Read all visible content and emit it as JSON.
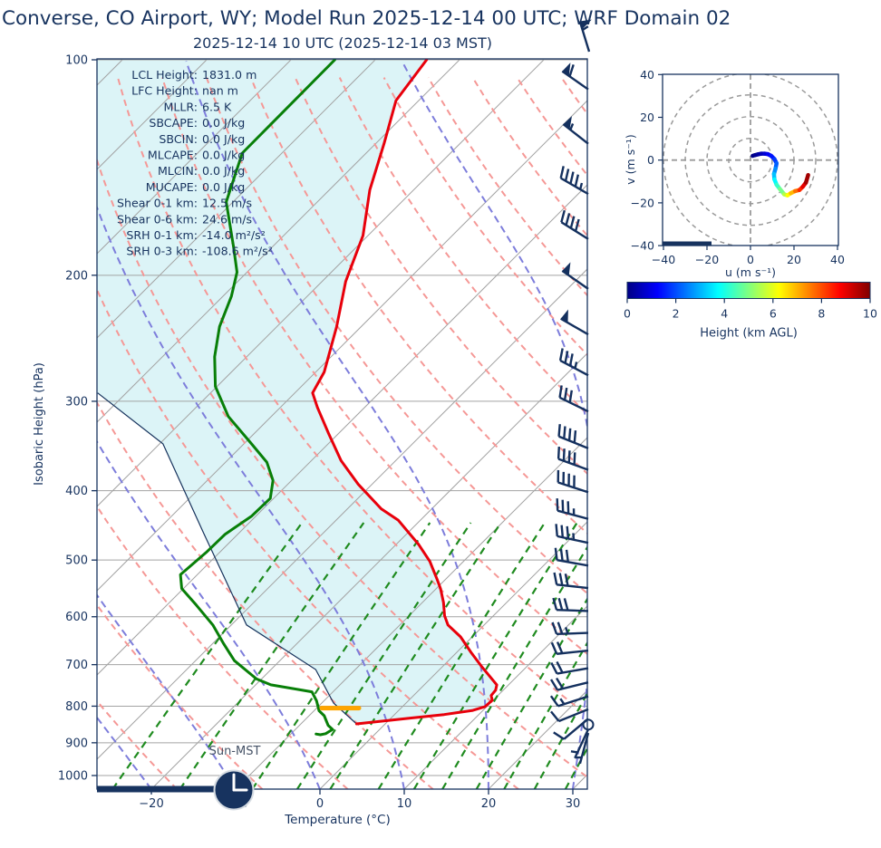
{
  "figure": {
    "title": "Converse, CO Airport, WY; Model Run 2025-12-14 00 UTC; WRF Domain 02",
    "subtitle": "2025-12-14 10 UTC  (2025-12-14 03 MST)",
    "text_color": "#17335f",
    "background": "#ffffff"
  },
  "skewt": {
    "xlabel": "Temperature (°C)",
    "ylabel": "Isobaric Height (hPa)",
    "pressure_ticks": [
      "100",
      "200",
      "300",
      "400",
      "500",
      "600",
      "700",
      "800",
      "900",
      "1000"
    ],
    "temperature_ticks": [
      "−20",
      "−10",
      "0",
      "10",
      "20",
      "30"
    ],
    "sun_label": "Sun-MST",
    "clock_time_shown": "3:00",
    "stats": [
      {
        "label": "LCL Height:",
        "value": "1831.0 m"
      },
      {
        "label": "LFC Height:",
        "value": "nan m"
      },
      {
        "label": "MLLR:",
        "value": "6.5 K"
      },
      {
        "label": "SBCAPE:",
        "value": "0.0 J/kg"
      },
      {
        "label": "SBCIN:",
        "value": "0.0 J/kg"
      },
      {
        "label": "MLCAPE:",
        "value": "0.0 J/kg"
      },
      {
        "label": "MLCIN:",
        "value": "0.0 J/kg"
      },
      {
        "label": "MUCAPE:",
        "value": "0.0 J/kg"
      },
      {
        "label": "Shear 0-1 km:",
        "value": "12.5 m/s"
      },
      {
        "label": "Shear 0-6 km:",
        "value": "24.6 m/s"
      },
      {
        "label": "SRH 0-1 km:",
        "value": "-14.0 m²/s²"
      },
      {
        "label": "SRH 0-3 km:",
        "value": "-108.6 m²/s²"
      }
    ],
    "colors": {
      "temperature": "#e8000b",
      "dewpoint": "#087f08",
      "parcel": "#16325c",
      "isotherm": "#a3a3a3",
      "dry_adiabat": "#f59896",
      "moist_adiabat": "#7d7ddb",
      "mixing_ratio": "#1f8b1f",
      "shade": "#dcf4f7",
      "lcl_marker": "#ffa500",
      "barb": "#14305e"
    },
    "wind_barbs_approx": [
      {
        "p": 110,
        "kt": 60,
        "dir": 305
      },
      {
        "p": 131,
        "kt": 55,
        "dir": 308
      },
      {
        "p": 154,
        "kt": 45,
        "dir": 300
      },
      {
        "p": 178,
        "kt": 40,
        "dir": 302
      },
      {
        "p": 209,
        "kt": 50,
        "dir": 305
      },
      {
        "p": 242,
        "kt": 50,
        "dir": 300
      },
      {
        "p": 276,
        "kt": 35,
        "dir": 298
      },
      {
        "p": 310,
        "kt": 30,
        "dir": 296
      },
      {
        "p": 349,
        "kt": 40,
        "dir": 292
      },
      {
        "p": 374,
        "kt": 40,
        "dir": 290
      },
      {
        "p": 402,
        "kt": 40,
        "dir": 288
      },
      {
        "p": 438,
        "kt": 35,
        "dir": 285
      },
      {
        "p": 473,
        "kt": 35,
        "dir": 282
      },
      {
        "p": 509,
        "kt": 30,
        "dir": 280
      },
      {
        "p": 547,
        "kt": 30,
        "dir": 276
      },
      {
        "p": 589,
        "kt": 28,
        "dir": 272
      },
      {
        "p": 632,
        "kt": 25,
        "dir": 268
      },
      {
        "p": 669,
        "kt": 22,
        "dir": 264
      },
      {
        "p": 708,
        "kt": 20,
        "dir": 260
      },
      {
        "p": 741,
        "kt": 18,
        "dir": 256
      },
      {
        "p": 775,
        "kt": 15,
        "dir": 252
      },
      {
        "p": 808,
        "kt": 12,
        "dir": 248
      },
      {
        "p": 833,
        "kt": 8,
        "dir": 230
      },
      {
        "p": 849,
        "kt": 0,
        "dir": 0
      },
      {
        "p": 862,
        "kt": 5,
        "dir": 205
      },
      {
        "p": 872,
        "kt": 7,
        "dir": 195
      }
    ],
    "header_barb": {
      "kt": 55,
      "dir": 343
    }
  },
  "hodograph": {
    "xlabel": "u (m s⁻¹)",
    "ylabel": "v (m s⁻¹)",
    "x_ticks": [
      "−40",
      "−20",
      "0",
      "20",
      "40"
    ],
    "y_ticks": [
      "40",
      "20",
      "0",
      "−20",
      "−40"
    ],
    "ring_spacing_ms": 10
  },
  "colorbar": {
    "label": "Height (km AGL)",
    "ticks": [
      "0",
      "2",
      "4",
      "6",
      "8",
      "10"
    ],
    "colormap": "jet"
  },
  "chart_data": [
    {
      "type": "line",
      "title": "Skew-T log-p sounding",
      "xlabel": "Temperature (°C)",
      "ylabel": "Isobaric Height (hPa)",
      "x_range": [
        -26,
        32
      ],
      "y_range": [
        1045,
        100
      ],
      "y_scale": "log",
      "grid": true,
      "series": [
        {
          "name": "temperature",
          "color": "#e8000b",
          "pressure_hPa": [
            100,
            114,
            131,
            152,
            176,
            204,
            236,
            273,
            292,
            306,
            332,
            363,
            392,
            424,
            440,
            475,
            502,
            533,
            548,
            573,
            598,
            616,
            640,
            673,
            706,
            747,
            760,
            773,
            785,
            801,
            811,
            822,
            831,
            847
          ],
          "values_C": [
            -73.9,
            -72.7,
            -69.0,
            -65.2,
            -60.6,
            -57.2,
            -52.9,
            -49.0,
            -47.9,
            -45.6,
            -41.3,
            -36.5,
            -31.6,
            -26.0,
            -22.6,
            -17.4,
            -14.0,
            -10.9,
            -9.5,
            -7.5,
            -5.8,
            -4.3,
            -1.4,
            1.7,
            4.8,
            8.6,
            9.1,
            9.2,
            9.9,
            9.8,
            8.8,
            5.9,
            2.4,
            -3.4
          ]
        },
        {
          "name": "dewpoint",
          "color": "#087f08",
          "pressure_hPa": [
            100,
            135,
            158,
            183,
            198,
            214,
            236,
            260,
            286,
            315,
            344,
            365,
            387,
            410,
            434,
            460,
            488,
            524,
            548,
            578,
            616,
            652,
            691,
            733,
            747,
            764,
            786,
            812,
            825,
            851,
            862,
            874,
            877,
            875
          ],
          "values_C": [
            -84.8,
            -84.7,
            -80.8,
            -74.5,
            -71.2,
            -69.0,
            -66.8,
            -63.8,
            -60.2,
            -55.1,
            -49.1,
            -45.1,
            -42.2,
            -40.4,
            -40.5,
            -41.5,
            -41.6,
            -42.0,
            -40.2,
            -36.5,
            -32.2,
            -28.9,
            -25.4,
            -20.6,
            -18.2,
            -12.5,
            -10.9,
            -9.4,
            -8.2,
            -6.6,
            -5.6,
            -5.9,
            -6.4,
            -7.0
          ]
        },
        {
          "name": "parcel_profile",
          "color": "#16325c",
          "pressure_hPa": [
            292,
            344,
            460,
            616,
            711,
            792,
            847
          ],
          "values_C": [
            -73.4,
            -59.6,
            -44.0,
            -28.2,
            -14.7,
            -8.6,
            -3.4
          ]
        }
      ],
      "annotations": {
        "lcl_pressure_hPa": 805,
        "shaded_region": "area between parcel profile and temperature (CIN shading)",
        "surface_pressure_hPa": 847
      }
    },
    {
      "type": "line",
      "title": "Hodograph",
      "xlabel": "u (m s⁻¹)",
      "ylabel": "v (m s⁻¹)",
      "x_range": [
        -40,
        40
      ],
      "y_range": [
        -40,
        40
      ],
      "rings_ms": [
        10,
        20,
        30,
        40
      ],
      "colormap": "jet",
      "color_range_km": [
        0,
        10
      ],
      "height_km": [
        0,
        0.1,
        0.25,
        0.45,
        0.7,
        1.0,
        1.3,
        1.6,
        2.0,
        2.4,
        2.9,
        3.4,
        4.0,
        4.6,
        5.2,
        5.9,
        6.6,
        7.3,
        8.0,
        8.7,
        9.3,
        10.0
      ],
      "u": [
        1,
        2,
        3.5,
        5,
        6.5,
        8,
        9.5,
        11,
        12,
        11.5,
        10.8,
        11,
        12,
        13.5,
        15.5,
        17,
        18.5,
        20.5,
        22.5,
        24,
        25.5,
        26.5
      ],
      "v": [
        2,
        2.3,
        2.7,
        3,
        3,
        2.8,
        2,
        0.5,
        -1.5,
        -4,
        -6.5,
        -9,
        -11.5,
        -13.5,
        -16,
        -16.5,
        -15.5,
        -14.5,
        -14,
        -12.5,
        -10.5,
        -7
      ]
    }
  ]
}
